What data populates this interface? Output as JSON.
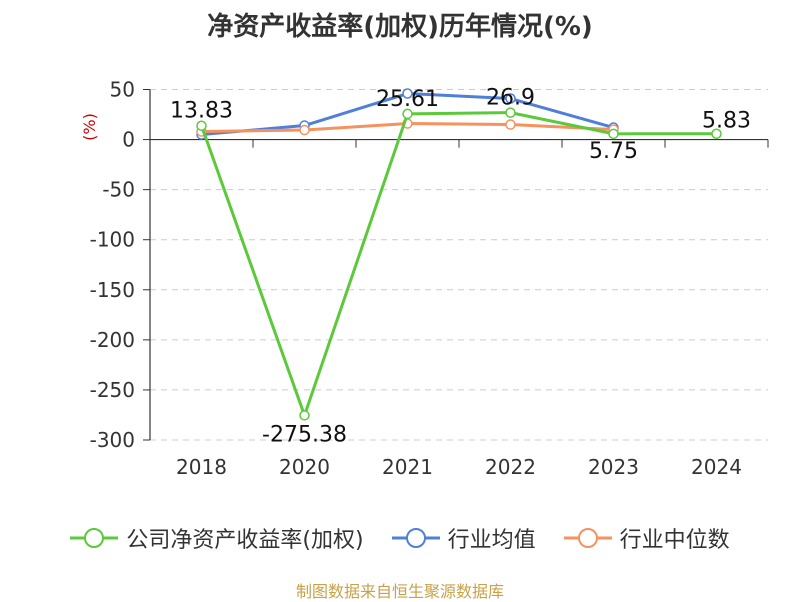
{
  "title": "净资产收益率(加权)历年情况(%)",
  "source": "制图数据来自恒生聚源数据库",
  "colors": {
    "company": "#5cc93a",
    "industry_avg": "#4f7fd8",
    "industry_median": "#f5925e",
    "grid": "#cccccc",
    "axis": "#333333",
    "unit": "#cc0000",
    "source": "#c8a24a"
  },
  "chart_data": {
    "type": "line",
    "title": "净资产收益率(加权)历年情况(%)",
    "ylabel": "(%)",
    "categories": [
      "2018",
      "2020",
      "2021",
      "2022",
      "2023",
      "2024"
    ],
    "ylim": [
      -300,
      50
    ],
    "yticks": [
      50,
      0,
      -50,
      -100,
      -150,
      -200,
      -250,
      -300
    ],
    "grid": true,
    "legend_position": "bottom",
    "series": [
      {
        "name": "公司净资产收益率(加权)",
        "color_key": "company",
        "values": [
          13.83,
          -275.38,
          25.61,
          26.9,
          5.75,
          5.83
        ],
        "labels": [
          "13.83",
          "-275.38",
          "25.61",
          "26.9",
          "5.75",
          "5.83"
        ]
      },
      {
        "name": "行业均值",
        "color_key": "industry_avg",
        "values": [
          5,
          14,
          46,
          41,
          12,
          null
        ]
      },
      {
        "name": "行业中位数",
        "color_key": "industry_median",
        "values": [
          8,
          9.5,
          16,
          15,
          10,
          null
        ]
      }
    ]
  }
}
